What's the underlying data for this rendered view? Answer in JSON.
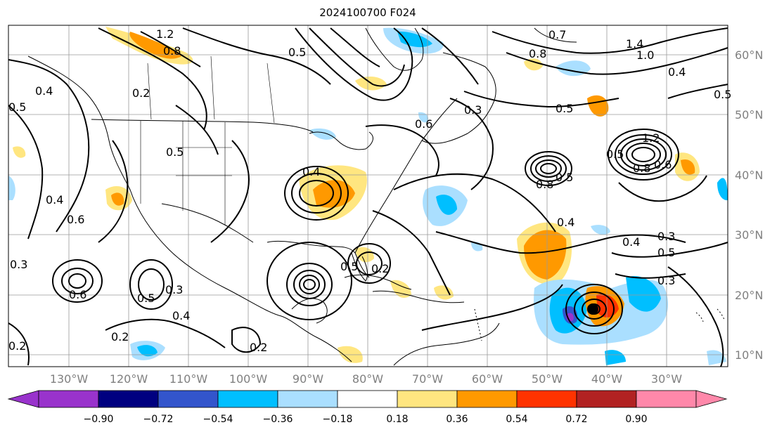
{
  "title": "2024100700 F024",
  "map": {
    "lon_labels": [
      "130°W",
      "120°W",
      "110°W",
      "100°W",
      "90°W",
      "80°W",
      "70°W",
      "60°W",
      "50°W",
      "40°W",
      "30°W"
    ],
    "lat_labels": [
      "60°N",
      "50°N",
      "40°N",
      "30°N",
      "20°N",
      "10°N"
    ],
    "contour_labels": [
      "1.2",
      "0.8",
      "0.2",
      "0.4",
      "0.5",
      "0.5",
      "0.6",
      "0.7",
      "0.8",
      "0.5",
      "1.4",
      "1.0",
      "0.4",
      "0.5",
      "0.5",
      "0.3",
      "0.6",
      "0.4",
      "0.5",
      "0.6",
      "0.4",
      "0.8",
      "0.5",
      "0.4",
      "0.3",
      "0.5",
      "0.3",
      "0.4",
      "0.6",
      "0.5",
      "0.3",
      "0.2",
      "0.4",
      "0.2",
      "0.3",
      "0.2",
      "0.2",
      "0.5",
      "1.2",
      "0.8"
    ]
  },
  "colorbar": {
    "ticks": [
      "−0.90",
      "−0.72",
      "−0.54",
      "−0.36",
      "−0.18",
      "0.18",
      "0.36",
      "0.54",
      "0.72",
      "0.90"
    ],
    "colors": [
      "#9933cc",
      "#000080",
      "#3355cc",
      "#00bfff",
      "#aadfff",
      "#ffffff",
      "#ffe680",
      "#ff9900",
      "#ff3300",
      "#b22222",
      "#ff88aa"
    ]
  }
}
